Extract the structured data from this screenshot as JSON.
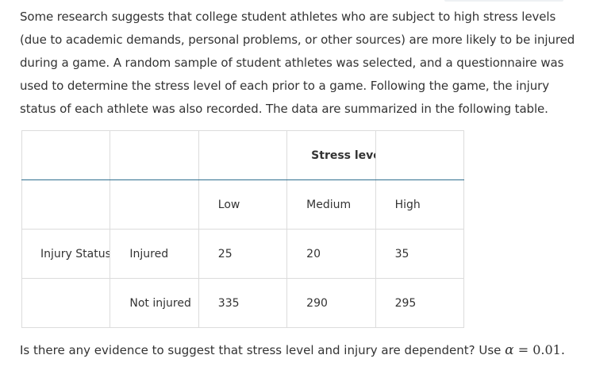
{
  "intro_text": "Some research suggests that college student athletes who are subject to high stress levels (due to academic demands, personal problems, or other sources) are more likely to be injured during a game. A random sample of student athletes was selected, and a questionnaire was used to determine the stress level of each prior to a game. Following the game, the injury status of each athlete was also recorded. The data are summarized in the following table.",
  "table": {
    "header": {
      "stress_level_label": "Stress level"
    },
    "levels": [
      "Low",
      "Medium",
      "High"
    ],
    "row_group_label": "Injury Status",
    "rows": [
      {
        "label": "Injured",
        "values": [
          "25",
          "20",
          "35"
        ]
      },
      {
        "label": "Not injured",
        "values": [
          "335",
          "290",
          "295"
        ]
      }
    ]
  },
  "question": {
    "text": "Is there any evidence to suggest that stress level and injury are dependent? Use ",
    "alpha_symbol": "α",
    "equals": " = 0.01",
    "end": "."
  }
}
